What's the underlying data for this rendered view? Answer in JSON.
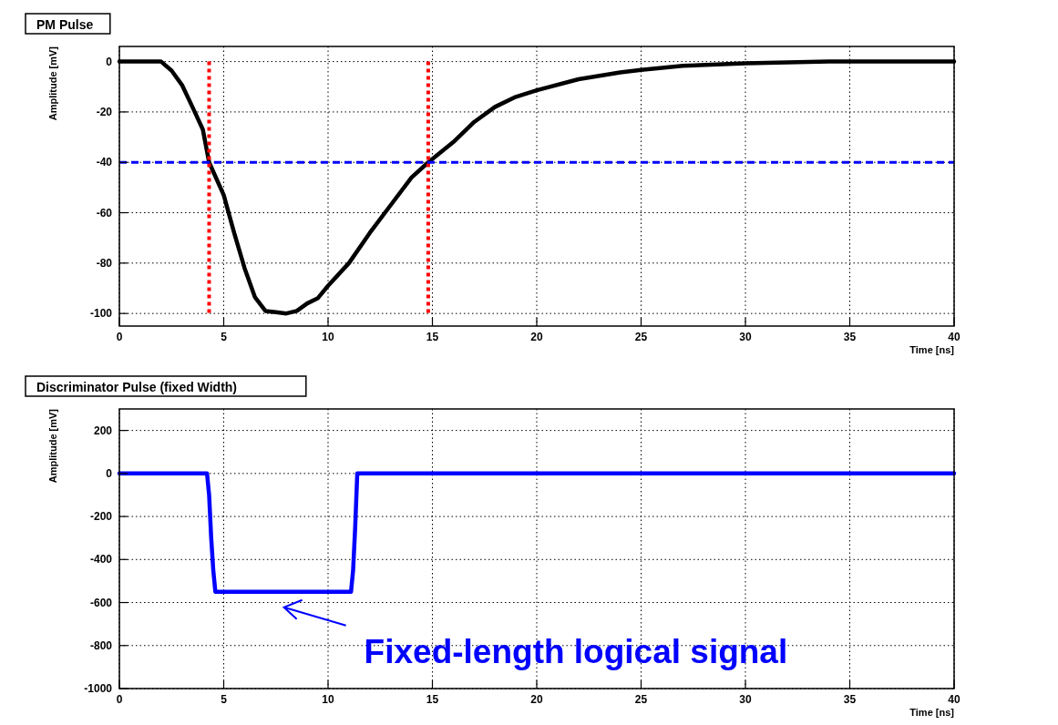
{
  "chart_data": [
    {
      "type": "line",
      "title": "PM Pulse",
      "xlabel": "Time [ns]",
      "ylabel": "Amplitude [mV]",
      "xlim": [
        0,
        40
      ],
      "xticks": [
        0,
        5,
        10,
        15,
        20,
        25,
        30,
        35,
        40
      ],
      "ylim": [
        -105,
        6
      ],
      "yticks": [
        -100,
        -80,
        -60,
        -40,
        -20,
        0
      ],
      "grid": true,
      "series": [
        {
          "color": "#000000",
          "x": [
            0,
            1,
            2,
            2.5,
            3,
            3.5,
            4,
            4.3,
            5,
            5.5,
            6,
            6.5,
            7,
            7.5,
            8,
            8.5,
            9,
            9.5,
            10,
            11,
            12,
            13,
            14,
            14.8,
            16,
            17,
            18,
            19,
            20,
            22,
            24,
            25,
            27,
            30,
            34,
            40
          ],
          "values": [
            0,
            0,
            0,
            -3.6,
            -9.3,
            -18,
            -27,
            -40,
            -53,
            -68,
            -82,
            -93.6,
            -99,
            -99.5,
            -100,
            -99,
            -96,
            -94,
            -89,
            -80,
            -68,
            -57,
            -46,
            -40,
            -32,
            -24,
            -18,
            -14,
            -11.4,
            -7,
            -4.3,
            -3.3,
            -1.7,
            -0.7,
            0,
            0
          ]
        }
      ],
      "ref_lines": [
        {
          "axis": "x",
          "value": 4.3,
          "color": "#ff0000",
          "line_style": "dotted"
        },
        {
          "axis": "x",
          "value": 14.8,
          "color": "#ff0000",
          "line_style": "dotted"
        },
        {
          "axis": "y",
          "value": -40,
          "color": "#0000ff",
          "line_style": "dashed"
        }
      ]
    },
    {
      "type": "line",
      "title": "Discriminator Pulse (fixed Width)",
      "xlabel": "Time [ns]",
      "ylabel": "Amplitude [mV]",
      "xlim": [
        0,
        40
      ],
      "xticks": [
        0,
        5,
        10,
        15,
        20,
        25,
        30,
        35,
        40
      ],
      "ylim": [
        -1000,
        300
      ],
      "yticks": [
        -1000,
        -800,
        -600,
        -400,
        -200,
        0,
        200
      ],
      "grid": true,
      "series": [
        {
          "color": "#0000ff",
          "x": [
            0,
            4.2,
            4.3,
            4.4,
            4.5,
            4.6,
            11.1,
            11.2,
            11.3,
            11.4,
            40
          ],
          "values": [
            0,
            0,
            -100,
            -300,
            -450,
            -550,
            -550,
            -450,
            -250,
            0,
            0
          ]
        }
      ],
      "annotations": [
        {
          "text": "Fixed-length logical signal",
          "x": 7.8,
          "y": -550
        }
      ]
    }
  ]
}
